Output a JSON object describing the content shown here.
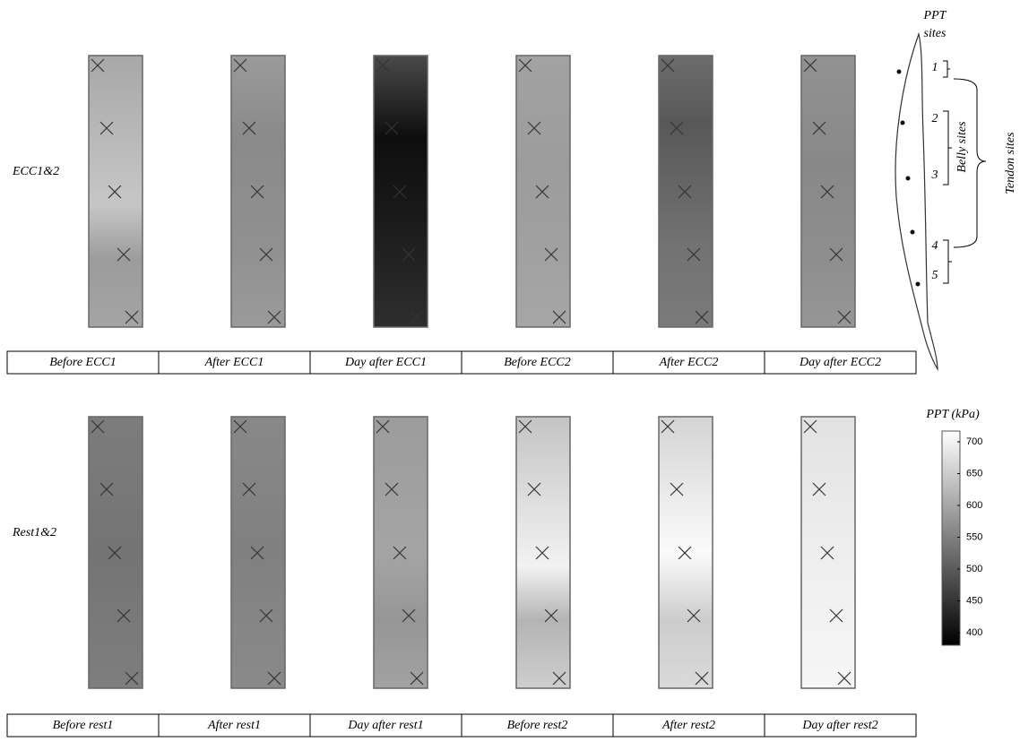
{
  "rows": [
    {
      "label": "ECC1&2",
      "columns": [
        "Before ECC1",
        "After ECC1",
        "Day after ECC1",
        "Before ECC2",
        "After ECC2",
        "Day after ECC2"
      ]
    },
    {
      "label": "Rest1&2",
      "columns": [
        "Before rest1",
        "After rest1",
        "Day after rest1",
        "Before rest2",
        "After rest2",
        "Day after rest2"
      ]
    }
  ],
  "colorbar": {
    "title": "PPT (kPa)",
    "ticks": [
      400,
      450,
      500,
      550,
      600,
      650,
      700
    ]
  },
  "diagram": {
    "title_lines": [
      "PPT",
      "sites"
    ],
    "sites": [
      "1",
      "2",
      "3",
      "4",
      "5"
    ],
    "belly_label": "Belly sites",
    "tendon_label": "Tendon sites"
  }
}
